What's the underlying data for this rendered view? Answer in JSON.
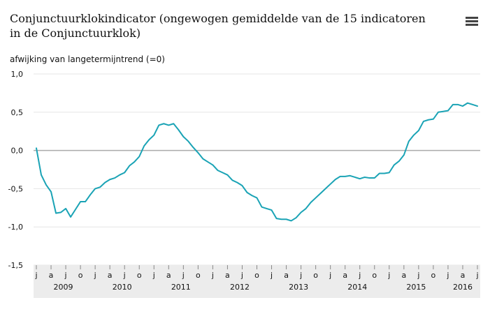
{
  "title": "Conjunctuurklokindicator (ongewogen gemiddelde van de 15 indicatoren in de Conjunctuurklok)",
  "chart_data": {
    "type": "line",
    "title": "Conjunctuurklokindicator (ongewogen gemiddelde van de 15 indicatoren in de Conjunctuurklok)",
    "ylabel": "afwijking van langetermijntrend (=0)",
    "xlabel": "",
    "ylim": [
      -1.5,
      1.0
    ],
    "yticks": [
      "1,0",
      "0,5",
      "0,0",
      "-0,5",
      "-1,0",
      "-1,5"
    ],
    "ytick_values": [
      1.0,
      0.5,
      0.0,
      -0.5,
      -1.0,
      -1.5
    ],
    "month_ticks": [
      "j",
      "a",
      "j",
      "o",
      "j",
      "a",
      "j",
      "o",
      "j",
      "a",
      "j",
      "o",
      "j",
      "a",
      "j",
      "o",
      "j",
      "a",
      "j",
      "o",
      "j",
      "a",
      "j",
      "o",
      "j",
      "a",
      "j",
      "o",
      "j",
      "a",
      "j"
    ],
    "years": [
      "2009",
      "2010",
      "2011",
      "2012",
      "2013",
      "2014",
      "2015",
      "2016"
    ],
    "x_start": "2009-01",
    "color": "#1aa3b5",
    "series": [
      {
        "name": "Conjunctuurklokindicator",
        "values": [
          0.03,
          -0.32,
          -0.45,
          -0.54,
          -0.82,
          -0.81,
          -0.76,
          -0.87,
          -0.77,
          -0.67,
          -0.67,
          -0.58,
          -0.5,
          -0.48,
          -0.42,
          -0.38,
          -0.36,
          -0.32,
          -0.29,
          -0.2,
          -0.15,
          -0.08,
          0.06,
          0.14,
          0.2,
          0.33,
          0.35,
          0.33,
          0.35,
          0.27,
          0.18,
          0.12,
          0.04,
          -0.03,
          -0.11,
          -0.15,
          -0.19,
          -0.26,
          -0.29,
          -0.32,
          -0.39,
          -0.42,
          -0.46,
          -0.55,
          -0.59,
          -0.62,
          -0.74,
          -0.76,
          -0.78,
          -0.89,
          -0.9,
          -0.9,
          -0.92,
          -0.88,
          -0.81,
          -0.76,
          -0.68,
          -0.62,
          -0.56,
          -0.5,
          -0.44,
          -0.38,
          -0.34,
          -0.34,
          -0.33,
          -0.35,
          -0.37,
          -0.35,
          -0.36,
          -0.36,
          -0.3,
          -0.3,
          -0.29,
          -0.19,
          -0.14,
          -0.06,
          0.12,
          0.2,
          0.26,
          0.38,
          0.4,
          0.41,
          0.5,
          0.51,
          0.52,
          0.6,
          0.6,
          0.58,
          0.62,
          0.6,
          0.58
        ]
      }
    ]
  }
}
